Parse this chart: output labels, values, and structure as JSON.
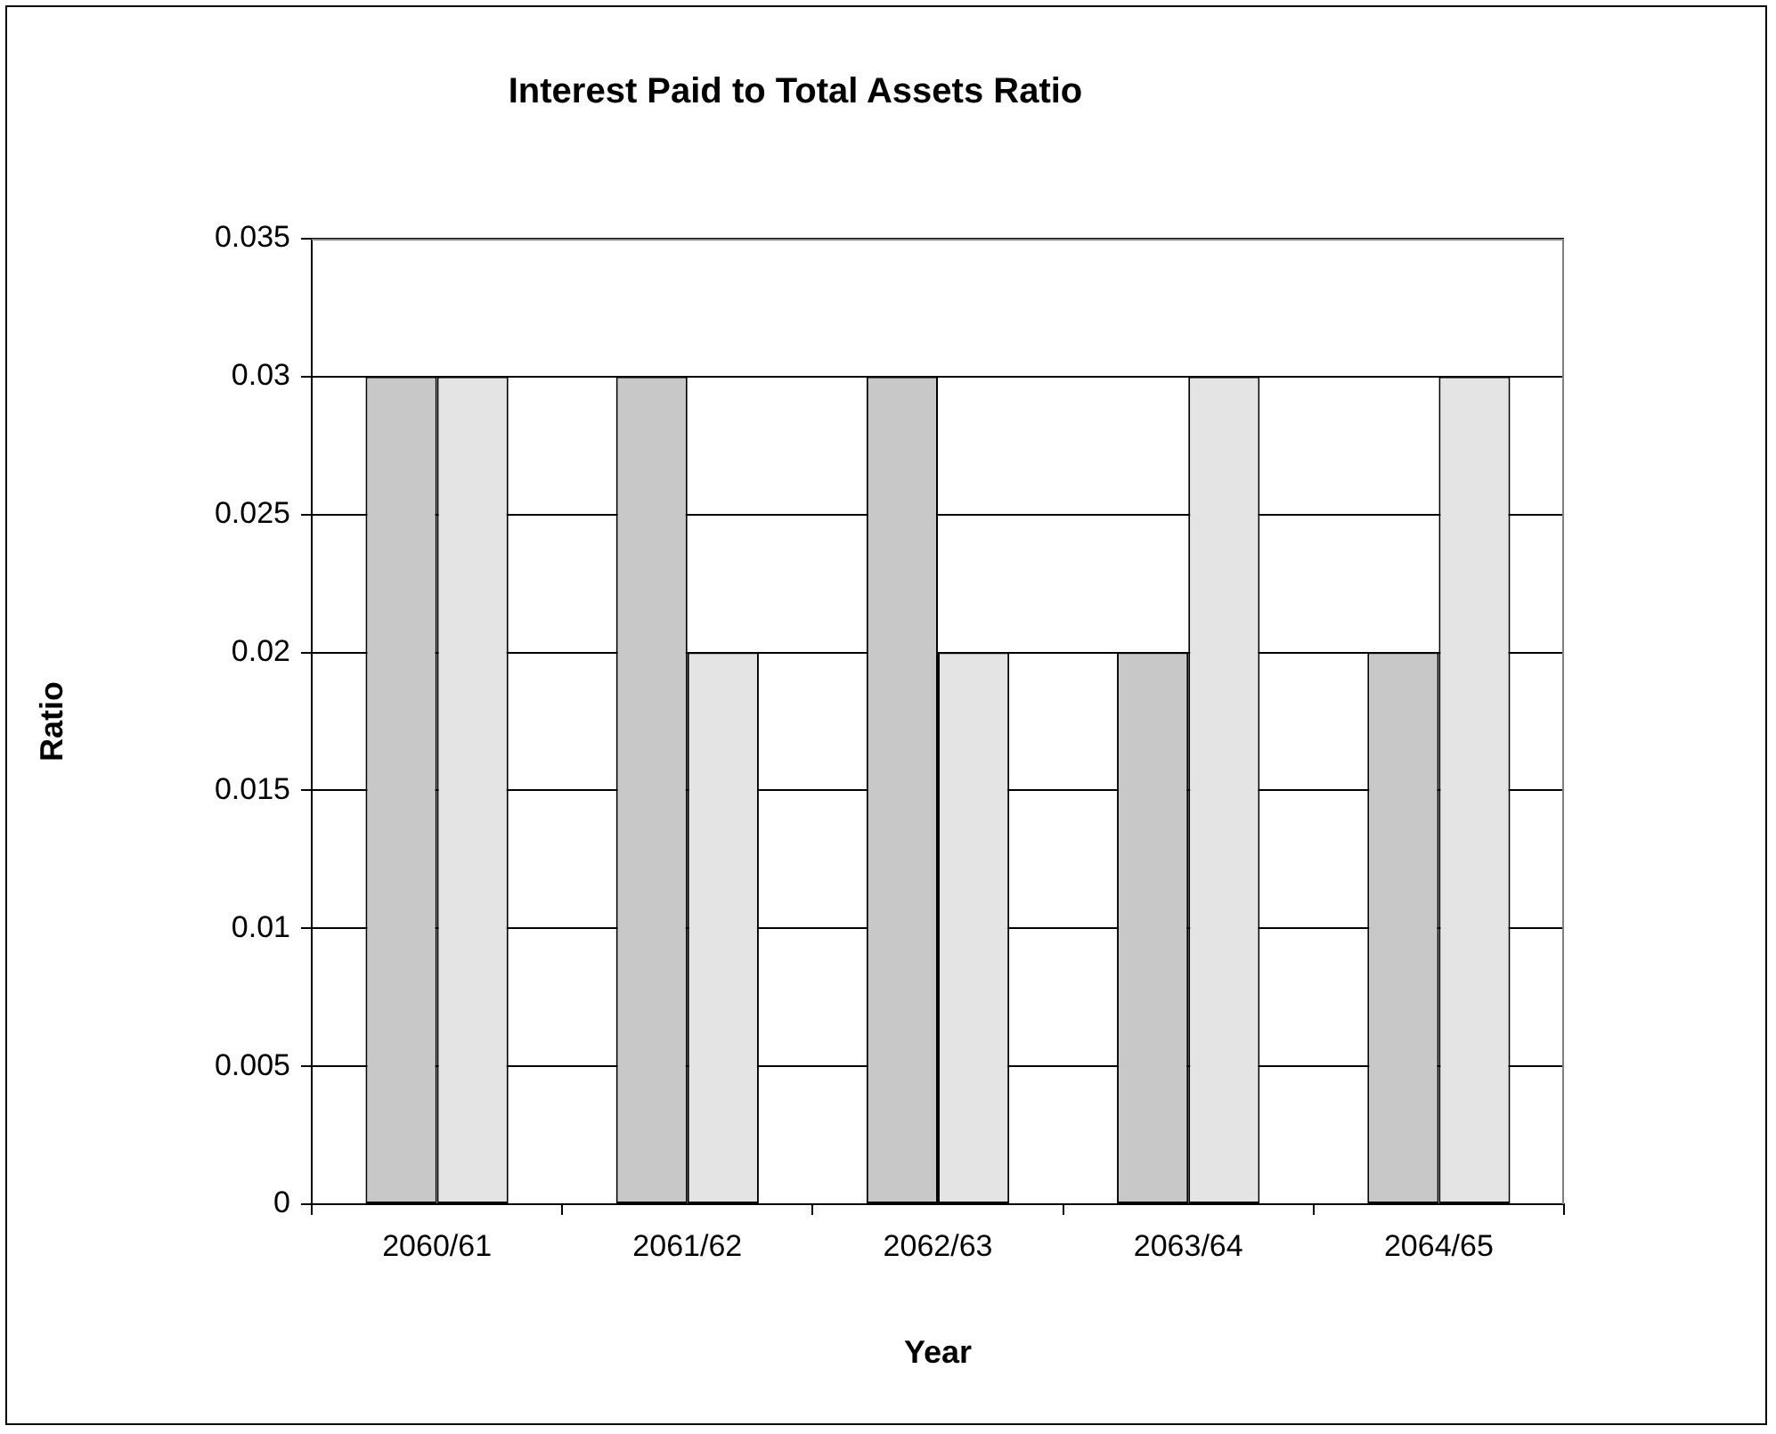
{
  "chart_data": {
    "type": "bar",
    "title": "Interest Paid to Total Assets Ratio",
    "xlabel": "Year",
    "ylabel": "Ratio",
    "categories": [
      "2060/61",
      "2061/62",
      "2062/63",
      "2063/64",
      "2064/65"
    ],
    "series": [
      {
        "color": "#c8c8c8",
        "values": [
          0.03,
          0.03,
          0.03,
          0.02,
          0.02
        ]
      },
      {
        "color": "#e4e4e4",
        "values": [
          0.03,
          0.02,
          0.02,
          0.03,
          0.03
        ]
      }
    ],
    "ylim": [
      0,
      0.035
    ],
    "yticks": [
      0,
      0.005,
      0.01,
      0.015,
      0.02,
      0.025,
      0.03,
      0.035
    ],
    "grid": "y",
    "legend": false
  }
}
